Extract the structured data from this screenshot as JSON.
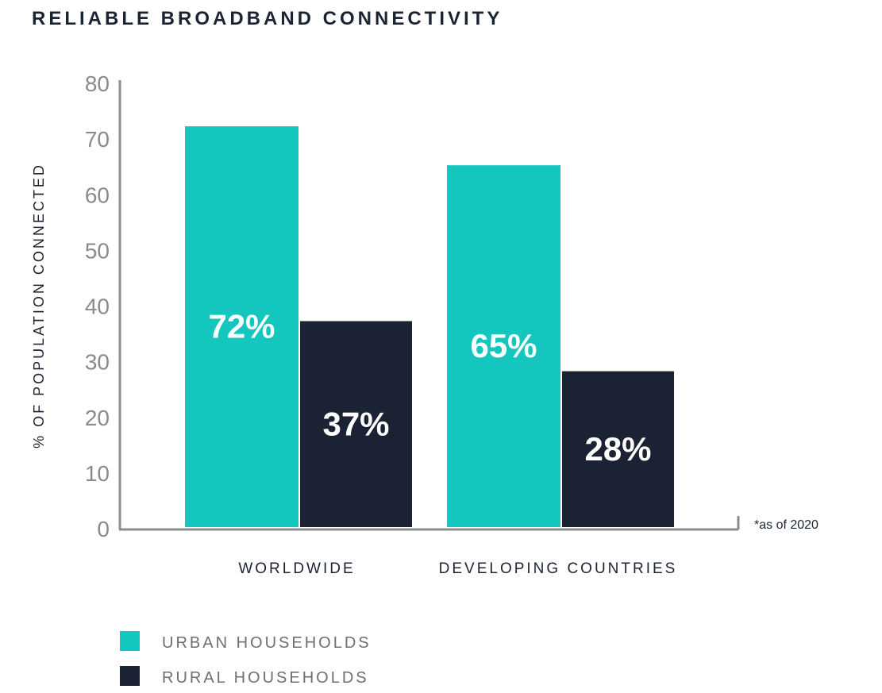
{
  "chart_data": {
    "type": "bar",
    "title": "RELIABLE BROADBAND CONNECTIVITY",
    "ylabel": "% OF POPULATION CONNECTED",
    "xlabel": "",
    "categories": [
      "WORLDWIDE",
      "DEVELOPING COUNTRIES"
    ],
    "series": [
      {
        "name": "URBAN HOUSEHOLDS",
        "values": [
          72,
          65
        ],
        "labels": [
          "72%",
          "65%"
        ],
        "color": "#13c7bf"
      },
      {
        "name": "RURAL HOUSEHOLDS",
        "values": [
          37,
          28
        ],
        "labels": [
          "37%",
          "28%"
        ],
        "color": "#1b2234"
      }
    ],
    "ylim": [
      0,
      80
    ],
    "yticks": [
      0,
      10,
      20,
      30,
      40,
      50,
      60,
      70,
      80
    ],
    "footnote": "*as of 2020",
    "grid": false,
    "legend": "bottom-left"
  }
}
